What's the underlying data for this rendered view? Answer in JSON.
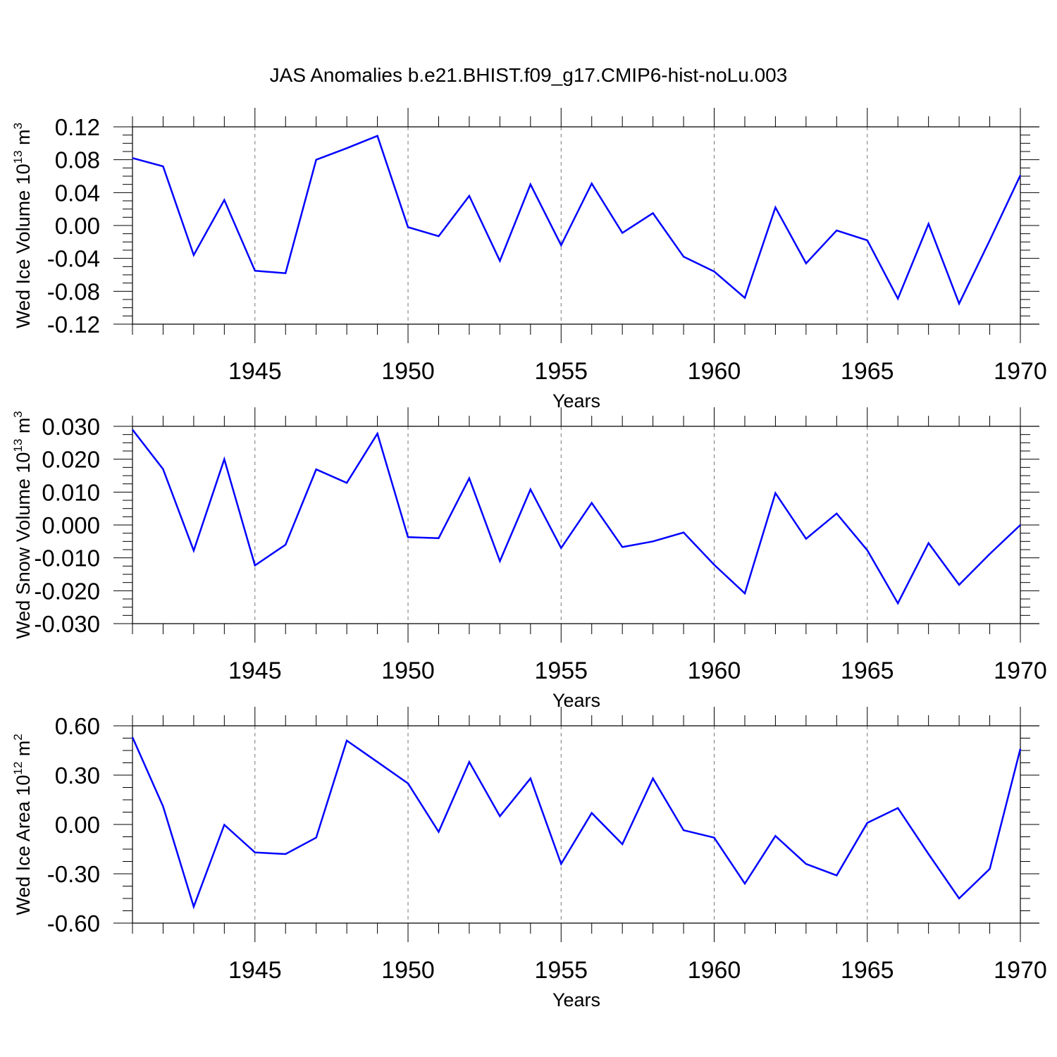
{
  "title": "JAS Anomalies b.e21.BHIST.f09_g17.CMIP6-hist-noLu.003",
  "colors": {
    "line": "#0000ff",
    "axis": "#000000",
    "grid": "#777777"
  },
  "chart_data": [
    {
      "type": "line",
      "ylabel": {
        "text": "Wed Ice Volume 10",
        "sup": "13",
        "unit": " m",
        "unit_sup": "3"
      },
      "xlabel": "Years",
      "xlim": [
        1941,
        1970
      ],
      "ylim": [
        -0.12,
        0.12
      ],
      "x_ticks": [
        1945,
        1950,
        1955,
        1960,
        1965,
        1970
      ],
      "y_ticks": [
        "-0.12",
        "-0.08",
        "-0.04",
        "0.00",
        "0.04",
        "0.08",
        "0.12"
      ],
      "grid": "vertical dashed at major x ticks",
      "series": [
        {
          "x": [
            1941,
            1942,
            1943,
            1944,
            1945,
            1946,
            1947,
            1948,
            1949,
            1950,
            1951,
            1952,
            1953,
            1954,
            1955,
            1956,
            1957,
            1958,
            1959,
            1960,
            1961,
            1962,
            1963,
            1964,
            1965,
            1966,
            1967,
            1968,
            1969,
            1970
          ],
          "values": [
            0.082,
            0.072,
            -0.036,
            0.031,
            -0.055,
            -0.058,
            0.08,
            0.094,
            0.109,
            -0.002,
            -0.013,
            0.036,
            -0.043,
            0.05,
            -0.024,
            0.051,
            -0.009,
            0.015,
            -0.038,
            -0.056,
            -0.088,
            0.022,
            -0.046,
            -0.006,
            -0.018,
            -0.089,
            0.002,
            -0.095,
            -0.018,
            0.061
          ]
        }
      ]
    },
    {
      "type": "line",
      "ylabel": {
        "text": "Wed Snow Volume 10",
        "sup": "13",
        "unit": " m",
        "unit_sup": "3"
      },
      "xlabel": "Years",
      "xlim": [
        1941,
        1970
      ],
      "ylim": [
        -0.03,
        0.03
      ],
      "x_ticks": [
        1945,
        1950,
        1955,
        1960,
        1965,
        1970
      ],
      "y_ticks": [
        "-0.030",
        "-0.020",
        "-0.010",
        "0.000",
        "0.010",
        "0.020",
        "0.030"
      ],
      "grid": "vertical dashed at major x ticks",
      "series": [
        {
          "x": [
            1941,
            1942,
            1943,
            1944,
            1945,
            1946,
            1947,
            1948,
            1949,
            1950,
            1951,
            1952,
            1953,
            1954,
            1955,
            1956,
            1957,
            1958,
            1959,
            1960,
            1961,
            1962,
            1963,
            1964,
            1965,
            1966,
            1967,
            1968,
            1969,
            1970
          ],
          "values": [
            0.029,
            0.017,
            -0.0078,
            0.02,
            -0.0123,
            -0.006,
            0.0169,
            0.0128,
            0.0278,
            -0.0037,
            -0.004,
            0.0142,
            -0.011,
            0.0108,
            -0.007,
            0.0067,
            -0.0067,
            -0.005,
            -0.0023,
            -0.0121,
            -0.0208,
            0.0097,
            -0.0042,
            0.0035,
            -0.0077,
            -0.0238,
            -0.0055,
            -0.0182,
            -0.0088,
            0.0
          ]
        }
      ]
    },
    {
      "type": "line",
      "ylabel": {
        "text": "Wed Ice Area 10",
        "sup": "12",
        "unit": " m",
        "unit_sup": "2"
      },
      "xlabel": "Years",
      "xlim": [
        1941,
        1970
      ],
      "ylim": [
        -0.6,
        0.6
      ],
      "x_ticks": [
        1945,
        1950,
        1955,
        1960,
        1965,
        1970
      ],
      "y_ticks": [
        "-0.60",
        "-0.30",
        "0.00",
        "0.30",
        "0.60"
      ],
      "grid": "vertical dashed at major x ticks",
      "series": [
        {
          "x": [
            1941,
            1942,
            1943,
            1944,
            1945,
            1946,
            1947,
            1948,
            1949,
            1950,
            1951,
            1952,
            1953,
            1954,
            1955,
            1956,
            1957,
            1958,
            1959,
            1960,
            1961,
            1962,
            1963,
            1964,
            1965,
            1966,
            1967,
            1968,
            1969,
            1970
          ],
          "values": [
            0.53,
            0.11,
            -0.5,
            -0.002,
            -0.17,
            -0.18,
            -0.08,
            0.51,
            0.38,
            0.25,
            -0.045,
            0.38,
            0.05,
            0.28,
            -0.24,
            0.07,
            -0.12,
            0.28,
            -0.035,
            -0.08,
            -0.36,
            -0.07,
            -0.24,
            -0.31,
            0.01,
            0.1,
            -0.18,
            -0.45,
            -0.27,
            0.46
          ]
        }
      ]
    }
  ]
}
